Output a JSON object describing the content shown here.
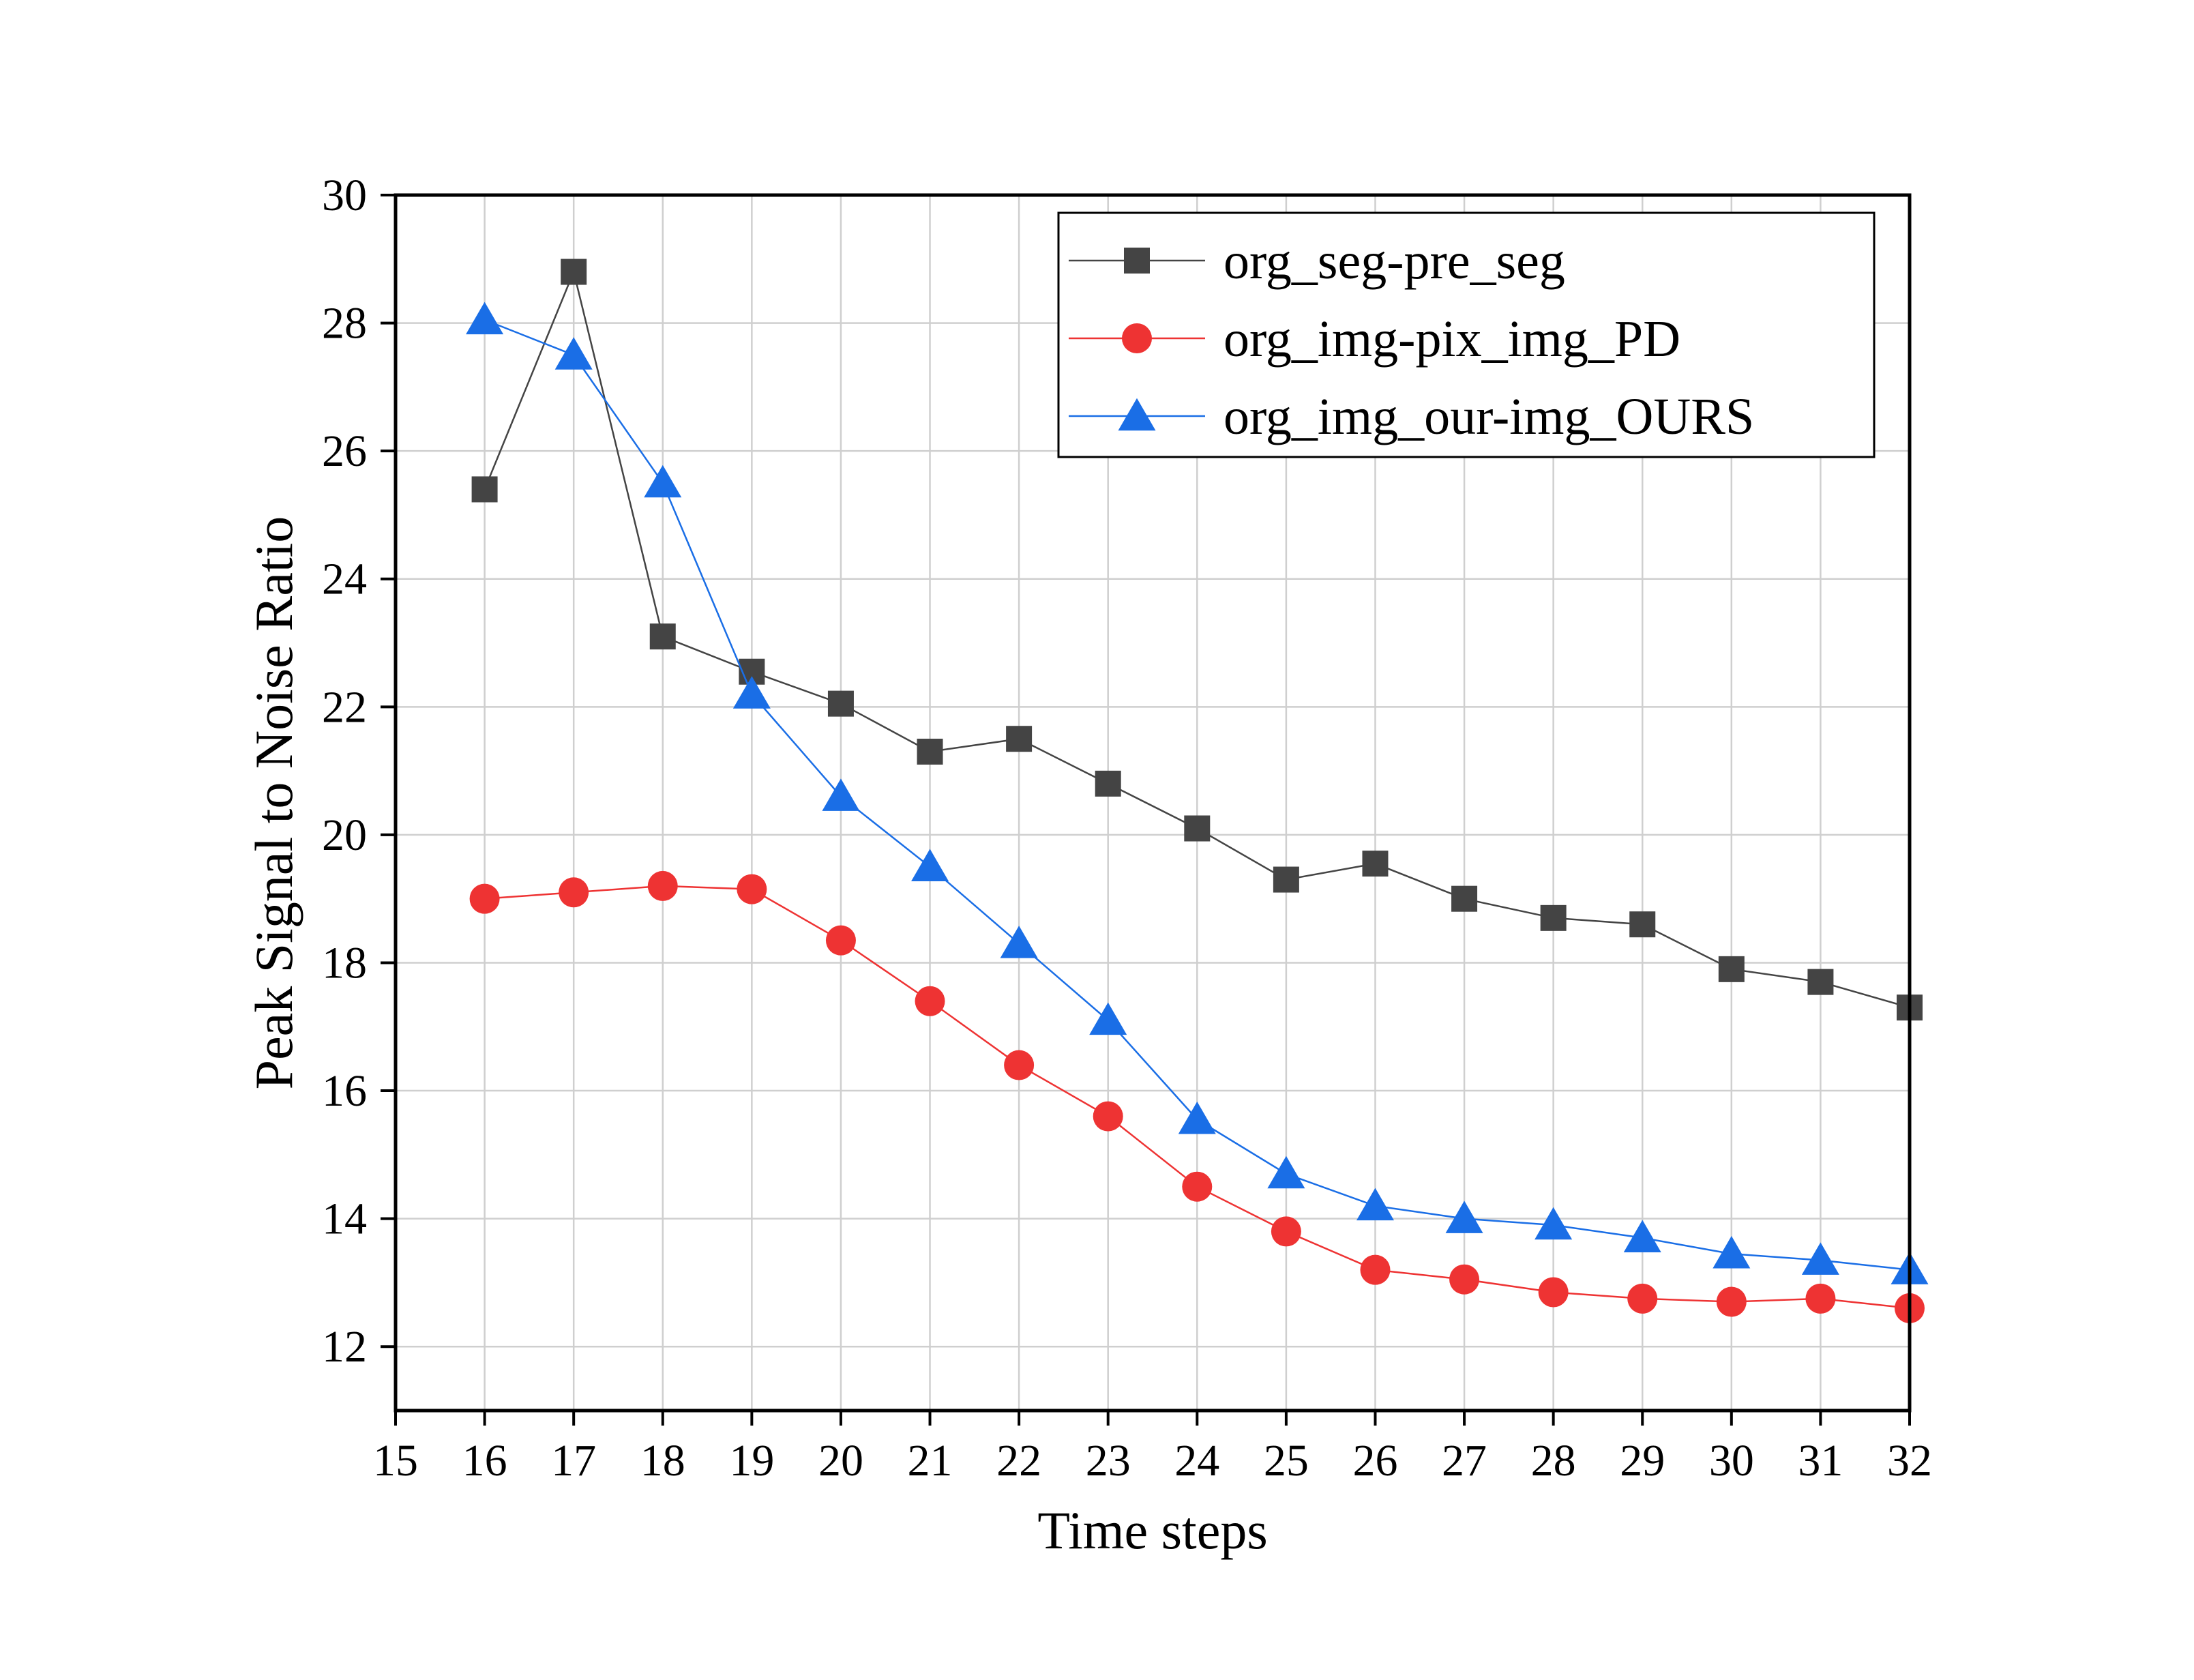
{
  "chart_data": {
    "type": "line",
    "xlabel": "Time steps",
    "ylabel": "Peak Signal to Noise Ratio",
    "xlim": [
      15,
      32
    ],
    "ylim": [
      11,
      30
    ],
    "xticks": [
      15,
      16,
      17,
      18,
      19,
      20,
      21,
      22,
      23,
      24,
      25,
      26,
      27,
      28,
      29,
      30,
      31,
      32
    ],
    "yticks": [
      12,
      14,
      16,
      18,
      20,
      22,
      24,
      26,
      28,
      30
    ],
    "grid": true,
    "legend_position": "top-right",
    "x": [
      16,
      17,
      18,
      19,
      20,
      21,
      22,
      23,
      24,
      25,
      26,
      27,
      28,
      29,
      30,
      31,
      32
    ],
    "series": [
      {
        "name": "org_seg-pre_seg",
        "marker": "square",
        "color": "#444444",
        "values": [
          25.4,
          28.8,
          23.1,
          22.55,
          22.05,
          21.3,
          21.5,
          20.8,
          20.1,
          19.3,
          19.55,
          19.0,
          18.7,
          18.6,
          17.9,
          17.7,
          17.3
        ]
      },
      {
        "name": "org_img-pix_img_PD",
        "marker": "circle",
        "color": "#ee3333",
        "values": [
          19.0,
          19.1,
          19.2,
          19.15,
          18.35,
          17.4,
          16.4,
          15.6,
          14.5,
          13.8,
          13.2,
          13.05,
          12.85,
          12.75,
          12.7,
          12.75,
          12.6
        ]
      },
      {
        "name": "org_img_our-img_OURS",
        "marker": "triangle",
        "color": "#1a6ee6",
        "values": [
          28.05,
          27.5,
          25.5,
          22.2,
          20.6,
          19.5,
          18.3,
          17.1,
          15.55,
          14.7,
          14.2,
          14.0,
          13.9,
          13.7,
          13.45,
          13.35,
          13.2
        ]
      }
    ]
  }
}
